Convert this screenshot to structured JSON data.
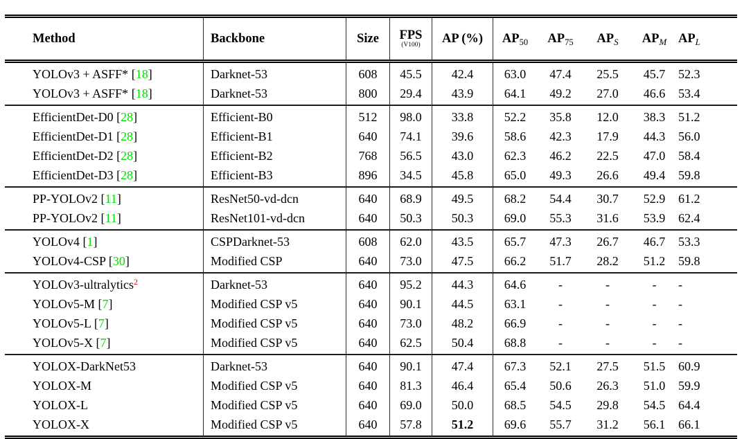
{
  "table": {
    "colors": {
      "citation_green": "#00df00",
      "footnote_red": "#ee0000",
      "text": "#000000",
      "rule": "#1c1c1c"
    },
    "header": {
      "method": "Method",
      "backbone": "Backbone",
      "size": "Size",
      "fps_label": "FPS",
      "fps_sub": "(V100)",
      "ap_label": "AP (%)",
      "ap_cols": [
        {
          "base": "AP",
          "sub": "50",
          "italic_sub": false
        },
        {
          "base": "AP",
          "sub": "75",
          "italic_sub": false
        },
        {
          "base": "AP",
          "sub": "S",
          "italic_sub": true
        },
        {
          "base": "AP",
          "sub": "M",
          "italic_sub": true
        },
        {
          "base": "AP",
          "sub": "L",
          "italic_sub": true
        }
      ]
    },
    "groups": [
      {
        "rows": [
          {
            "method": "YOLOv3 + ASFF*",
            "cite": "18",
            "backbone": "Darknet-53",
            "vals": [
              "608",
              "45.5",
              "42.4",
              "63.0",
              "47.4",
              "25.5",
              "45.7",
              "52.3"
            ]
          },
          {
            "method": "YOLOv3 + ASFF*",
            "cite": "18",
            "backbone": "Darknet-53",
            "vals": [
              "800",
              "29.4",
              "43.9",
              "64.1",
              "49.2",
              "27.0",
              "46.6",
              "53.4"
            ]
          }
        ]
      },
      {
        "rows": [
          {
            "method": "EfficientDet-D0",
            "cite": "28",
            "backbone": "Efficient-B0",
            "vals": [
              "512",
              "98.0",
              "33.8",
              "52.2",
              "35.8",
              "12.0",
              "38.3",
              "51.2"
            ]
          },
          {
            "method": "EfficientDet-D1",
            "cite": "28",
            "backbone": "Efficient-B1",
            "vals": [
              "640",
              "74.1",
              "39.6",
              "58.6",
              "42.3",
              "17.9",
              "44.3",
              "56.0"
            ]
          },
          {
            "method": "EfficientDet-D2",
            "cite": "28",
            "backbone": "Efficient-B2",
            "vals": [
              "768",
              "56.5",
              "43.0",
              "62.3",
              "46.2",
              "22.5",
              "47.0",
              "58.4"
            ]
          },
          {
            "method": "EfficientDet-D3",
            "cite": "28",
            "backbone": "Efficient-B3",
            "vals": [
              "896",
              "34.5",
              "45.8",
              "65.0",
              "49.3",
              "26.6",
              "49.4",
              "59.8"
            ]
          }
        ]
      },
      {
        "rows": [
          {
            "method": "PP-YOLOv2",
            "cite": "11",
            "backbone": "ResNet50-vd-dcn",
            "vals": [
              "640",
              "68.9",
              "49.5",
              "68.2",
              "54.4",
              "30.7",
              "52.9",
              "61.2"
            ]
          },
          {
            "method": "PP-YOLOv2",
            "cite": "11",
            "backbone": "ResNet101-vd-dcn",
            "vals": [
              "640",
              "50.3",
              "50.3",
              "69.0",
              "55.3",
              "31.6",
              "53.9",
              "62.4"
            ]
          }
        ]
      },
      {
        "rows": [
          {
            "method": "YOLOv4",
            "cite": "1",
            "backbone": "CSPDarknet-53",
            "vals": [
              "608",
              "62.0",
              "43.5",
              "65.7",
              "47.3",
              "26.7",
              "46.7",
              "53.3"
            ]
          },
          {
            "method": "YOLOv4-CSP",
            "cite": "30",
            "backbone": "Modified CSP",
            "vals": [
              "640",
              "73.0",
              "47.5",
              "66.2",
              "51.7",
              "28.2",
              "51.2",
              "59.8"
            ]
          }
        ]
      },
      {
        "rows": [
          {
            "method": "YOLOv3-ultralytics",
            "sup": "2",
            "backbone": "Darknet-53",
            "vals": [
              "640",
              "95.2",
              "44.3",
              "64.6",
              "-",
              "-",
              "-",
              "-"
            ]
          },
          {
            "method": "YOLOv5-M",
            "cite": "7",
            "backbone": "Modified CSP v5",
            "vals": [
              "640",
              "90.1",
              "44.5",
              "63.1",
              "-",
              "-",
              "-",
              "-"
            ]
          },
          {
            "method": "YOLOv5-L",
            "cite": "7",
            "backbone": "Modified CSP v5",
            "vals": [
              "640",
              "73.0",
              "48.2",
              "66.9",
              "-",
              "-",
              "-",
              "-"
            ]
          },
          {
            "method": "YOLOv5-X",
            "cite": "7",
            "backbone": "Modified CSP v5",
            "vals": [
              "640",
              "62.5",
              "50.4",
              "68.8",
              "-",
              "-",
              "-",
              "-"
            ]
          }
        ]
      },
      {
        "rows": [
          {
            "method": "YOLOX-DarkNet53",
            "backbone": "Darknet-53",
            "vals": [
              "640",
              "90.1",
              "47.4",
              "67.3",
              "52.1",
              "27.5",
              "51.5",
              "60.9"
            ]
          },
          {
            "method": "YOLOX-M",
            "backbone": "Modified CSP v5",
            "vals": [
              "640",
              "81.3",
              "46.4",
              "65.4",
              "50.6",
              "26.3",
              "51.0",
              "59.9"
            ]
          },
          {
            "method": "YOLOX-L",
            "backbone": "Modified CSP v5",
            "vals": [
              "640",
              "69.0",
              "50.0",
              "68.5",
              "54.5",
              "29.8",
              "54.5",
              "64.4"
            ]
          },
          {
            "method": "YOLOX-X",
            "backbone": "Modified CSP v5",
            "ap_bold": true,
            "vals": [
              "640",
              "57.8",
              "51.2",
              "69.6",
              "55.7",
              "31.2",
              "56.1",
              "66.1"
            ]
          }
        ]
      }
    ]
  }
}
